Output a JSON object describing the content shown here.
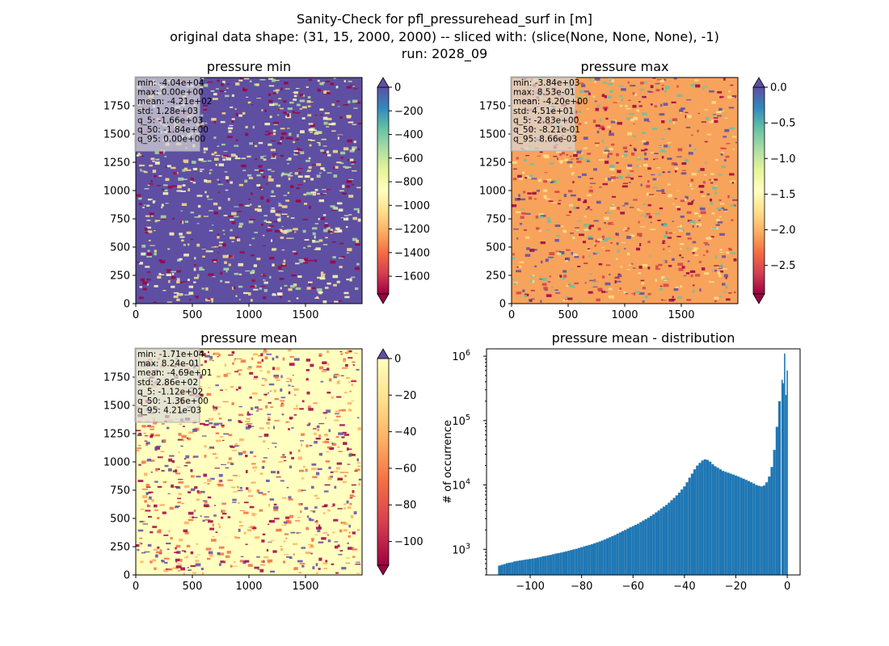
{
  "figure": {
    "suptitle_lines": [
      "Sanity-Check for pfl_pressurehead_surf in [m]",
      "original data shape: (31, 15, 2000, 2000) -- sliced with: (slice(None, None, None), -1)",
      "run: 2028_09"
    ]
  },
  "colors": {
    "spectral": [
      "#9e0142",
      "#d53e4f",
      "#f46d43",
      "#fdae61",
      "#fee08b",
      "#ffffbf",
      "#e6f598",
      "#abdda4",
      "#66c2a5",
      "#3288bd",
      "#5e4fa2"
    ],
    "histogram": "#1f77b4",
    "over": "#5e4fa2",
    "under": "#9e0142"
  },
  "chart_data": [
    {
      "type": "heatmap",
      "title": "pressure min",
      "xlim": [
        0,
        2000
      ],
      "ylim": [
        0,
        2000
      ],
      "xticks": [
        "0",
        "500",
        "1000",
        "1500"
      ],
      "yticks": [
        "0",
        "250",
        "500",
        "750",
        "1000",
        "1250",
        "1500",
        "1750"
      ],
      "colorbar": {
        "range": [
          -1750,
          0
        ],
        "ticks": [
          "0",
          "−200",
          "−400",
          "−600",
          "−800",
          "−1000",
          "−1200",
          "−1400",
          "−1600"
        ],
        "extend": "both"
      },
      "stats": [
        "min: -4.04e+04",
        "max: 0.00e+00",
        "mean: -4.21e+02",
        "std: 1.28e+03",
        "q_5: -1.66e+03",
        "q_50: -1.84e+00",
        "q_95: 0.00e+00"
      ]
    },
    {
      "type": "heatmap",
      "title": "pressure max",
      "xlim": [
        0,
        2000
      ],
      "ylim": [
        0,
        2000
      ],
      "xticks": [
        "0",
        "500",
        "1000",
        "1500"
      ],
      "yticks": [
        "0",
        "250",
        "500",
        "750",
        "1000",
        "1250",
        "1500",
        "1750"
      ],
      "colorbar": {
        "range": [
          -2.9,
          0
        ],
        "ticks": [
          "0.0",
          "−0.5",
          "−1.0",
          "−1.5",
          "−2.0",
          "−2.5"
        ],
        "extend": "both"
      },
      "stats": [
        "min: -3.84e+03",
        "max: 8.53e-01",
        "mean: -4.20e+00",
        "std: 4.51e+01",
        "q_5: -2.83e+00",
        "q_50: -8.21e-01",
        "q_95: 8.66e-03"
      ]
    },
    {
      "type": "heatmap",
      "title": "pressure mean",
      "xlim": [
        0,
        2000
      ],
      "ylim": [
        0,
        2000
      ],
      "xticks": [
        "0",
        "500",
        "1000",
        "1500"
      ],
      "yticks": [
        "0",
        "250",
        "500",
        "750",
        "1000",
        "1250",
        "1500",
        "1750"
      ],
      "colorbar": {
        "range": [
          -113,
          0
        ],
        "ticks": [
          "0",
          "−20",
          "−40",
          "−60",
          "−80",
          "−100"
        ],
        "extend": "both"
      },
      "stats": [
        "min: -1.71e+04",
        "max: 8.24e-01",
        "mean: -4.69e+01",
        "std: 2.86e+02",
        "q_5: -1.12e+02",
        "q_50: -1.36e+00",
        "q_95: 4.21e-03"
      ]
    },
    {
      "type": "bar",
      "title": "pressure mean - distribution",
      "ylabel": "# of occurrence",
      "xlim": [
        -117,
        5
      ],
      "ylim": [
        400,
        1300000
      ],
      "yscale": "log",
      "xticks": [
        "−100",
        "−80",
        "−60",
        "−40",
        "−20",
        "0"
      ],
      "yticks": [
        "10^3",
        "10^4",
        "10^5",
        "10^6"
      ],
      "bin_width": 0.56,
      "series": [
        {
          "x": [
            -112,
            -111,
            -110,
            -109,
            -108,
            -107,
            -106,
            -105,
            -104,
            -103,
            -102,
            -101,
            -100,
            -99,
            -98,
            -97,
            -96,
            -95,
            -94,
            -93,
            -92,
            -91,
            -90,
            -89,
            -88,
            -87,
            -86,
            -85,
            -84,
            -83,
            -82,
            -81,
            -80,
            -79,
            -78,
            -77,
            -76,
            -75,
            -74,
            -73,
            -72,
            -71,
            -70,
            -69,
            -68,
            -67,
            -66,
            -65,
            -64,
            -63,
            -62,
            -61,
            -60,
            -59,
            -58,
            -57,
            -56,
            -55,
            -54,
            -53,
            -52,
            -51,
            -50,
            -49,
            -48,
            -47,
            -46,
            -45,
            -44,
            -43,
            -42,
            -41,
            -40,
            -39,
            -38,
            -37,
            -36,
            -35,
            -34,
            -33,
            -32,
            -31,
            -30,
            -29,
            -28,
            -27,
            -26,
            -25,
            -24,
            -23,
            -22,
            -21,
            -20,
            -19,
            -18,
            -17,
            -16,
            -15,
            -14,
            -13,
            -12,
            -11,
            -10,
            -9,
            -8,
            -7,
            -6,
            -5,
            -4,
            -3,
            -2,
            -1.5,
            -1,
            -0.5,
            0
          ],
          "values": [
            560,
            575,
            590,
            610,
            620,
            630,
            650,
            660,
            670,
            680,
            690,
            700,
            710,
            720,
            730,
            745,
            760,
            780,
            790,
            805,
            820,
            840,
            860,
            875,
            890,
            910,
            930,
            950,
            975,
            1000,
            1020,
            1050,
            1080,
            1110,
            1140,
            1170,
            1200,
            1240,
            1280,
            1320,
            1370,
            1420,
            1480,
            1540,
            1600,
            1670,
            1750,
            1830,
            1920,
            2000,
            2100,
            2200,
            2300,
            2400,
            2500,
            2650,
            2800,
            2950,
            3100,
            3300,
            3500,
            3750,
            4000,
            4300,
            4600,
            4900,
            5300,
            5800,
            6300,
            6900,
            7600,
            8500,
            9500,
            11000,
            13000,
            15000,
            17500,
            20000,
            22000,
            24000,
            25000,
            24500,
            23000,
            21000,
            19500,
            18500,
            17500,
            16500,
            16000,
            15500,
            15000,
            14500,
            14000,
            13500,
            13000,
            12500,
            12000,
            11500,
            11000,
            10500,
            10000,
            9700,
            9500,
            9800,
            11000,
            13500,
            19000,
            35000,
            80000,
            200000,
            430000,
            380000,
            1100000,
            250000,
            600000
          ]
        }
      ]
    }
  ]
}
